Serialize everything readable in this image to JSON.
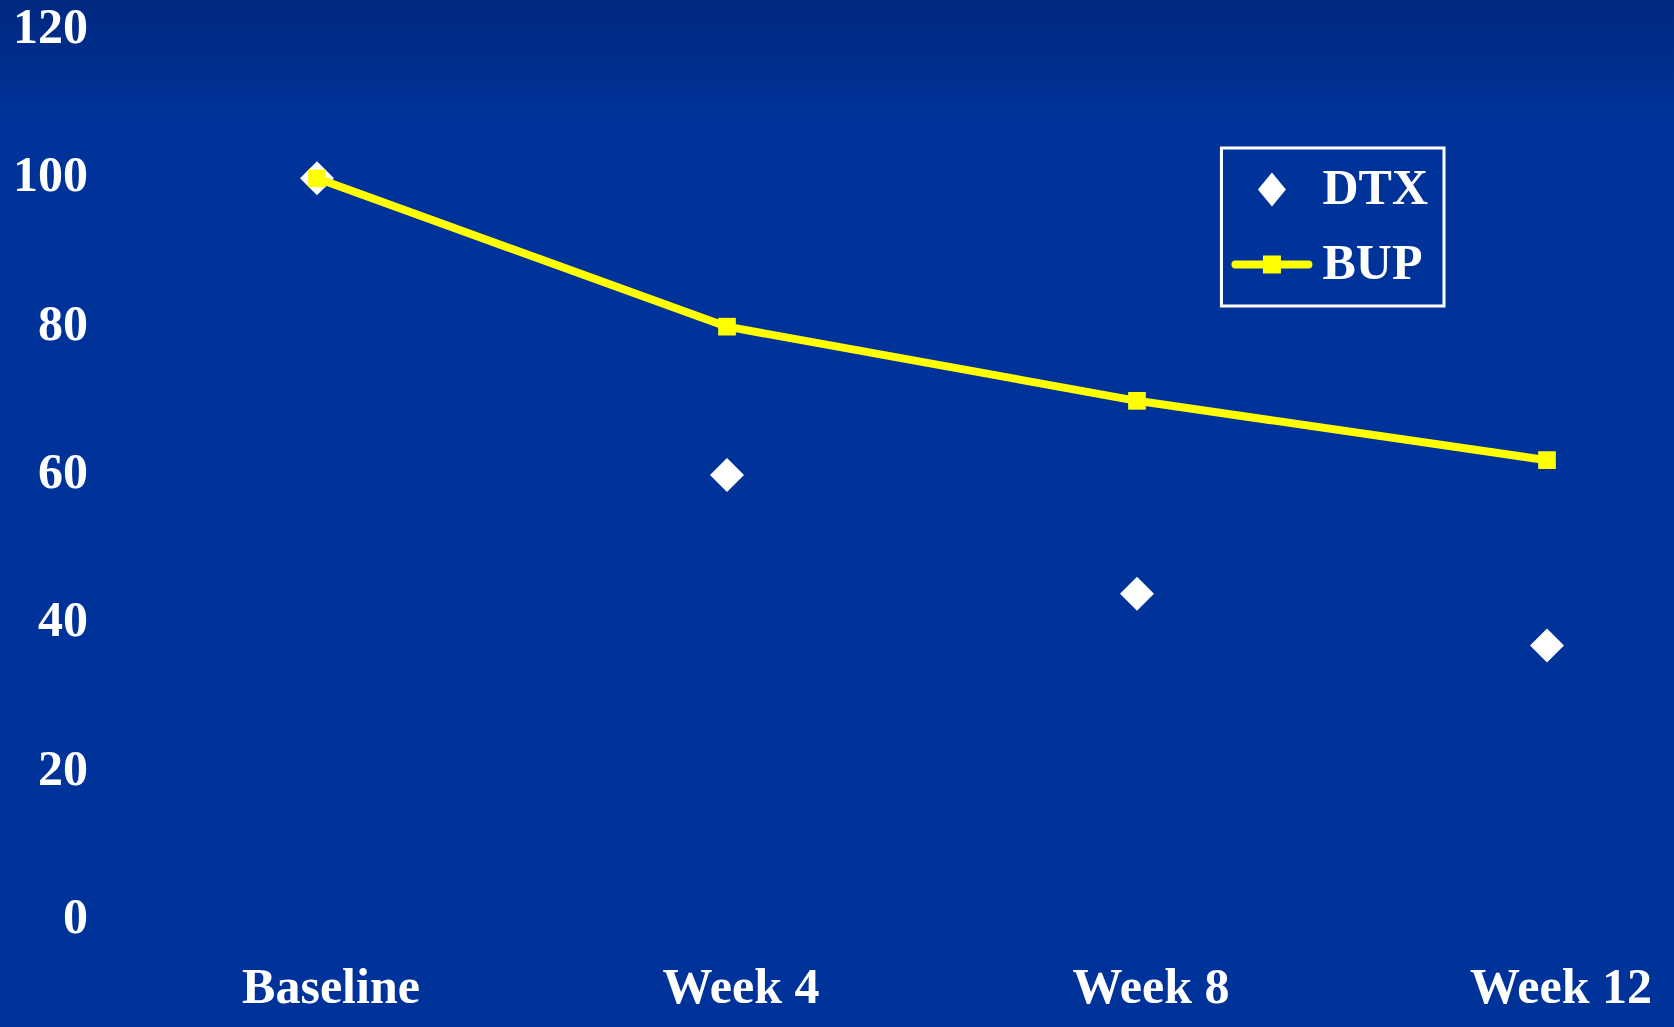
{
  "chart_data": {
    "type": "line",
    "categories": [
      "Baseline",
      "Week 4",
      "Week 8",
      "Week 12"
    ],
    "series": [
      {
        "name": "DTX",
        "type": "scatter",
        "color": "#ffffff",
        "marker": "diamond",
        "values": [
          100,
          60,
          44,
          37
        ]
      },
      {
        "name": "BUP",
        "type": "line",
        "color": "#ffff00",
        "marker": "square",
        "line_style": "solid",
        "values": [
          100,
          80,
          70,
          62
        ]
      }
    ],
    "ylim": [
      0,
      120
    ],
    "yticks": [
      0,
      20,
      40,
      60,
      80,
      100,
      120
    ],
    "legend": "top right"
  }
}
